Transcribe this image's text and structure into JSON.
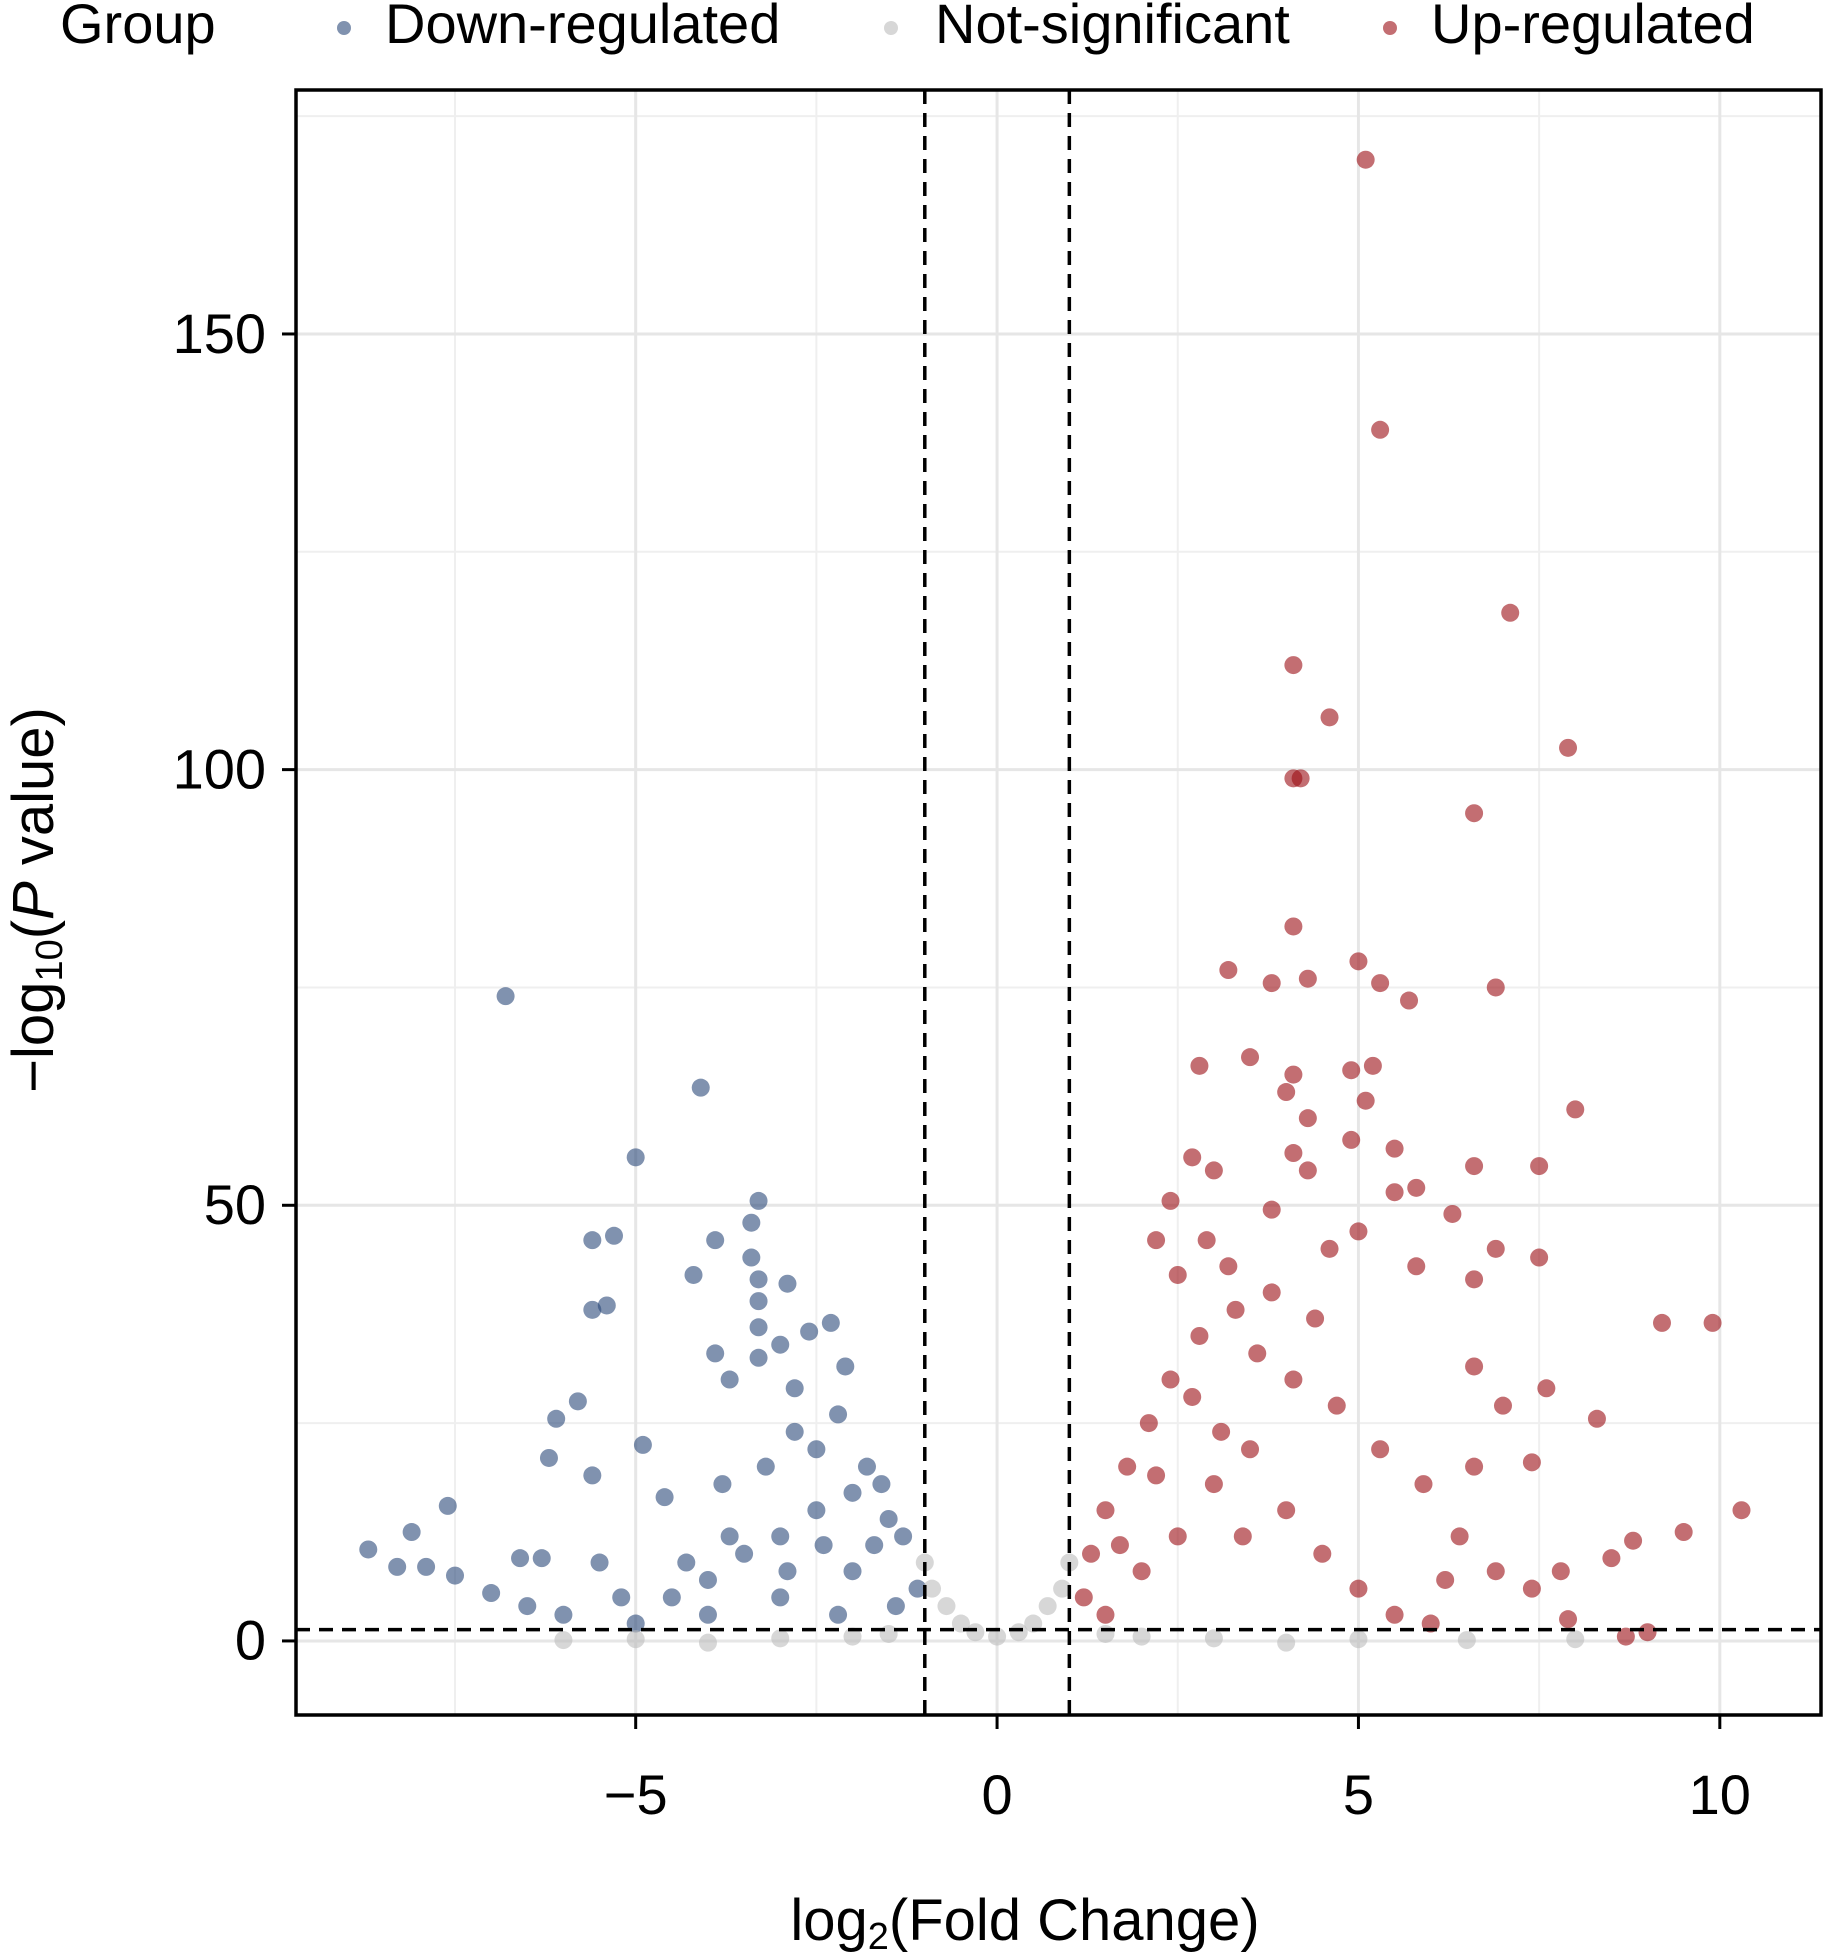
{
  "chart_data": {
    "type": "scatter",
    "legend_title": "Group",
    "xlabel": [
      "log",
      "2",
      "(Fold Change)"
    ],
    "ylabel": [
      "−log",
      "10",
      "(",
      "P",
      " value)"
    ],
    "xlim": [
      -9.7,
      11.4
    ],
    "ylim": [
      -8.5,
      178
    ],
    "xticks": [
      {
        "value": -5,
        "label": "−5"
      },
      0,
      5,
      10
    ],
    "yticks": [
      0,
      50,
      100,
      150
    ],
    "grid": true,
    "thresholds": {
      "x": [
        -1,
        1
      ],
      "y": 1.3
    },
    "series": [
      {
        "name": "Down-regulated",
        "color": "#2b4a7a",
        "x": [
          -6.8,
          -4.1,
          -5.0,
          -3.3,
          -3.4,
          -5.6,
          -5.3,
          -3.9,
          -3.4,
          -4.2,
          -3.3,
          -2.9,
          -3.3,
          -5.4,
          -5.6,
          -2.3,
          -3.3,
          -2.6,
          -3.0,
          -3.3,
          -3.9,
          -2.1,
          -3.7,
          -2.8,
          -5.8,
          -6.1,
          -2.2,
          -4.9,
          -6.2,
          -5.6,
          -4.6,
          -7.6,
          -8.1,
          -8.7,
          -8.3,
          -7.9,
          -7.5,
          -6.6,
          -6.3,
          -5.5,
          -7.0,
          -6.5,
          -6.0,
          -5.0,
          -4.5,
          -4.0,
          -3.5,
          -3.0,
          -2.5,
          -2.0,
          -1.6,
          -1.3,
          -1.1,
          -2.0,
          -3.0,
          -4.0,
          -2.5,
          -1.8,
          -3.8,
          -2.8,
          -1.4,
          -2.2,
          -1.7,
          -2.9,
          -3.7,
          -4.3,
          -5.2,
          -1.5,
          -2.4,
          -3.2
        ],
        "y": [
          74,
          63.5,
          55.5,
          50.5,
          48,
          46,
          46.5,
          46,
          44,
          42,
          41.5,
          41,
          39,
          38.5,
          38,
          36.5,
          36,
          35.5,
          34,
          32.5,
          33,
          31.5,
          30,
          29,
          27.5,
          25.5,
          26,
          22.5,
          21,
          19,
          16.5,
          15.5,
          12.5,
          10.5,
          8.5,
          8.5,
          7.5,
          9.5,
          9.5,
          9,
          5.5,
          4,
          3,
          2,
          5,
          7,
          10,
          12,
          15,
          17,
          18,
          12,
          6,
          8,
          5,
          3,
          22,
          20,
          18,
          24,
          4,
          3,
          11,
          8,
          12,
          9,
          5,
          14,
          11,
          20
        ]
      },
      {
        "name": "Not-significant",
        "color": "#bdbdbd",
        "x": [
          0,
          -0.5,
          0.5,
          -0.9,
          0.9,
          -1,
          1,
          -0.3,
          0.3,
          -0.7,
          0.7,
          -3,
          -5,
          3,
          5,
          6.5,
          -6,
          2,
          -2,
          8,
          -1.5,
          1.5,
          4,
          -4
        ],
        "y": [
          0.5,
          2,
          2,
          6,
          6,
          9,
          9,
          1,
          1,
          4,
          4,
          0.3,
          0.2,
          0.3,
          0.2,
          0.1,
          0.1,
          0.5,
          0.5,
          0.2,
          0.8,
          0.8,
          -0.2,
          -0.2
        ]
      },
      {
        "name": "Up-regulated",
        "color": "#9b0d14",
        "x": [
          5.1,
          5.3,
          7.1,
          4.1,
          4.6,
          7.9,
          4.1,
          4.2,
          6.6,
          4.1,
          3.2,
          5.0,
          3.8,
          4.3,
          5.3,
          5.7,
          6.9,
          2.8,
          3.5,
          4.1,
          4.0,
          4.9,
          5.2,
          5.1,
          8.0,
          4.3,
          4.9,
          5.5,
          2.7,
          3.0,
          4.1,
          4.3,
          6.6,
          7.5,
          5.8,
          5.5,
          2.4,
          3.8,
          6.3,
          6.9,
          7.5,
          9.2,
          9.9,
          6.6,
          5.0,
          5.8,
          4.6,
          3.2,
          2.2,
          2.5,
          7.6,
          8.3,
          6.6,
          7.0,
          6.6,
          7.4,
          9.5,
          10.3,
          8.8,
          8.5,
          7.8,
          8.7,
          9.0,
          7.9,
          1.2,
          1.3,
          1.5,
          1.8,
          2.1,
          2.4,
          2.8,
          3.3,
          3.6,
          4.1,
          4.7,
          5.3,
          5.9,
          6.4,
          6.9,
          7.4,
          1.5,
          2.0,
          2.5,
          3.0,
          3.5,
          4.0,
          4.5,
          5.0,
          5.5,
          6.0,
          2.2,
          2.7,
          3.1,
          1.7,
          3.8,
          4.4,
          2.9,
          3.4,
          6.2
        ],
        "y": [
          170,
          139,
          118,
          112,
          106,
          102.5,
          99,
          99,
          95,
          82,
          77,
          78,
          75.5,
          76,
          75.5,
          73.5,
          75,
          66,
          67,
          65,
          63,
          65.5,
          66,
          62,
          61,
          60,
          57.5,
          56.5,
          55.5,
          54,
          56,
          54,
          54.5,
          54.5,
          52,
          51.5,
          50.5,
          49.5,
          49,
          45,
          44,
          36.5,
          36.5,
          41.5,
          47,
          43,
          45,
          43,
          46,
          42,
          29,
          25.5,
          31.5,
          27,
          20,
          20.5,
          12.5,
          15,
          11.5,
          9.5,
          8,
          0.5,
          1,
          2.5,
          5,
          10,
          15,
          20,
          25,
          30,
          35,
          38,
          33,
          30,
          27,
          22,
          18,
          12,
          8,
          6,
          3,
          8,
          12,
          18,
          22,
          15,
          10,
          6,
          3,
          2,
          19,
          28,
          24,
          11,
          40,
          37,
          46,
          12,
          7
        ]
      }
    ]
  }
}
